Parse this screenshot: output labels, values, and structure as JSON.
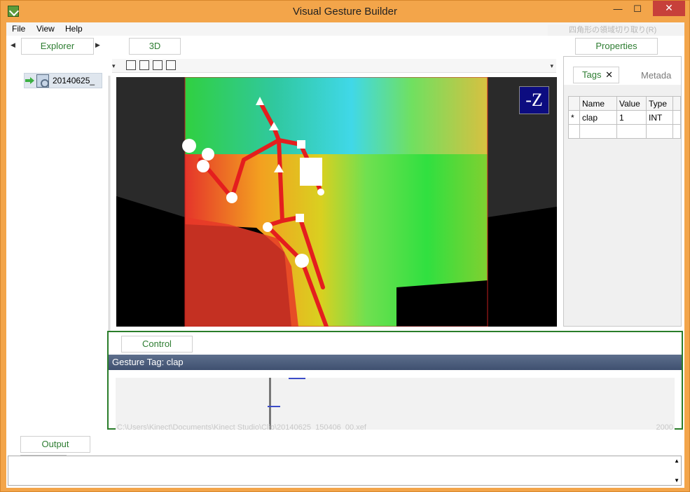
{
  "window": {
    "title": "Visual Gesture Builder",
    "ime_hint": "四角形の領域切り取り(R)",
    "minimize": "—",
    "maximize": "☐",
    "close": "✕"
  },
  "menu": [
    "File",
    "View",
    "Help"
  ],
  "explorer": {
    "label": "Explorer",
    "items": [
      {
        "label": "20140625_"
      }
    ]
  },
  "view3d": {
    "label": "3D",
    "axis_label": "-Z",
    "toolbar_icons": [
      "home-icon",
      "camera-front-icon",
      "camera-side-icon",
      "camera-top-icon"
    ]
  },
  "properties": {
    "label": "Properties",
    "tabs": [
      {
        "label": "Tags",
        "close": "✕"
      },
      {
        "label": "Metada"
      }
    ],
    "columns": [
      "Name",
      "Value",
      "Type"
    ],
    "rows": [
      {
        "marker": "*",
        "name": "clap",
        "value": "1",
        "type": "INT"
      }
    ]
  },
  "control": {
    "label": "Control",
    "gesture_tag": "Gesture Tag: clap",
    "path_text": "C:\\Users\\Kinect\\Documents\\Kinect Studio\\Clip\\20140625_150406_00.xef",
    "frame_count": "2000"
  },
  "output": {
    "label": "Output"
  },
  "colors": {
    "accent_green": "#2e7d32",
    "titlebar": "#f3a54a",
    "skeleton": "#e41e1e"
  }
}
